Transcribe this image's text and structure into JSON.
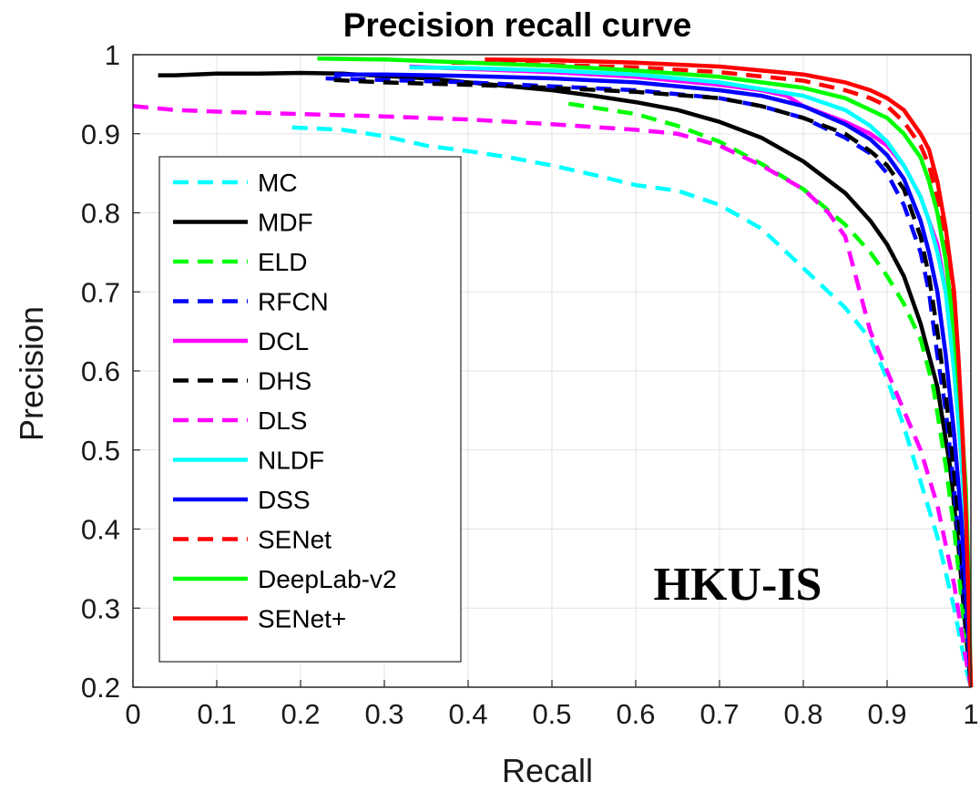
{
  "chart_data": {
    "type": "line",
    "title": "Precision recall curve",
    "xlabel": "Recall",
    "ylabel": "Precision",
    "xlim": [
      0,
      1
    ],
    "ylim": [
      0.2,
      1
    ],
    "grid": true,
    "x_ticks": [
      "0",
      "0.1",
      "0.2",
      "0.3",
      "0.4",
      "0.5",
      "0.6",
      "0.7",
      "0.8",
      "0.9",
      "1"
    ],
    "y_ticks": [
      "0.2",
      "0.3",
      "0.4",
      "0.5",
      "0.6",
      "0.7",
      "0.8",
      "0.9",
      "1"
    ],
    "legend_position": "left",
    "annotation": "HKU-IS",
    "series": [
      {
        "name": "MC",
        "color": "#00ffff",
        "dash": "dashed",
        "points": [
          [
            0.19,
            0.908
          ],
          [
            0.25,
            0.905
          ],
          [
            0.3,
            0.897
          ],
          [
            0.35,
            0.885
          ],
          [
            0.4,
            0.878
          ],
          [
            0.45,
            0.87
          ],
          [
            0.5,
            0.86
          ],
          [
            0.55,
            0.848
          ],
          [
            0.6,
            0.835
          ],
          [
            0.65,
            0.828
          ],
          [
            0.7,
            0.81
          ],
          [
            0.75,
            0.78
          ],
          [
            0.8,
            0.73
          ],
          [
            0.85,
            0.68
          ],
          [
            0.88,
            0.64
          ],
          [
            0.9,
            0.59
          ],
          [
            0.92,
            0.53
          ],
          [
            0.94,
            0.46
          ],
          [
            0.96,
            0.39
          ],
          [
            0.98,
            0.3
          ],
          [
            0.995,
            0.22
          ],
          [
            1.0,
            0.2
          ]
        ]
      },
      {
        "name": "MDF",
        "color": "#000000",
        "dash": "solid",
        "points": [
          [
            0.03,
            0.974
          ],
          [
            0.05,
            0.974
          ],
          [
            0.1,
            0.976
          ],
          [
            0.15,
            0.976
          ],
          [
            0.2,
            0.977
          ],
          [
            0.25,
            0.976
          ],
          [
            0.3,
            0.973
          ],
          [
            0.35,
            0.97
          ],
          [
            0.4,
            0.965
          ],
          [
            0.45,
            0.96
          ],
          [
            0.5,
            0.955
          ],
          [
            0.55,
            0.948
          ],
          [
            0.6,
            0.94
          ],
          [
            0.65,
            0.93
          ],
          [
            0.7,
            0.915
          ],
          [
            0.75,
            0.895
          ],
          [
            0.8,
            0.865
          ],
          [
            0.85,
            0.825
          ],
          [
            0.88,
            0.79
          ],
          [
            0.9,
            0.76
          ],
          [
            0.92,
            0.72
          ],
          [
            0.94,
            0.66
          ],
          [
            0.96,
            0.58
          ],
          [
            0.975,
            0.48
          ],
          [
            0.985,
            0.38
          ],
          [
            0.993,
            0.28
          ],
          [
            1.0,
            0.2
          ]
        ]
      },
      {
        "name": "ELD",
        "color": "#00ff00",
        "dash": "dashed",
        "points": [
          [
            0.52,
            0.938
          ],
          [
            0.6,
            0.925
          ],
          [
            0.65,
            0.91
          ],
          [
            0.7,
            0.89
          ],
          [
            0.75,
            0.862
          ],
          [
            0.8,
            0.83
          ],
          [
            0.85,
            0.785
          ],
          [
            0.88,
            0.75
          ],
          [
            0.9,
            0.72
          ],
          [
            0.92,
            0.685
          ],
          [
            0.94,
            0.64
          ],
          [
            0.955,
            0.58
          ],
          [
            0.97,
            0.48
          ],
          [
            0.98,
            0.4
          ],
          [
            0.99,
            0.3
          ],
          [
            0.997,
            0.22
          ],
          [
            1.0,
            0.2
          ]
        ]
      },
      {
        "name": "RFCN",
        "color": "#0000ff",
        "dash": "dashed",
        "points": [
          [
            0.23,
            0.97
          ],
          [
            0.3,
            0.968
          ],
          [
            0.4,
            0.965
          ],
          [
            0.5,
            0.96
          ],
          [
            0.6,
            0.955
          ],
          [
            0.7,
            0.945
          ],
          [
            0.75,
            0.935
          ],
          [
            0.8,
            0.92
          ],
          [
            0.85,
            0.895
          ],
          [
            0.88,
            0.875
          ],
          [
            0.9,
            0.85
          ],
          [
            0.92,
            0.81
          ],
          [
            0.94,
            0.75
          ],
          [
            0.95,
            0.7
          ],
          [
            0.96,
            0.62
          ],
          [
            0.97,
            0.55
          ],
          [
            0.98,
            0.45
          ],
          [
            0.99,
            0.34
          ],
          [
            0.996,
            0.26
          ],
          [
            1.0,
            0.2
          ]
        ]
      },
      {
        "name": "DCL",
        "color": "#ff00ff",
        "dash": "solid",
        "points": [
          [
            0.33,
            0.985
          ],
          [
            0.4,
            0.982
          ],
          [
            0.5,
            0.978
          ],
          [
            0.6,
            0.972
          ],
          [
            0.7,
            0.962
          ],
          [
            0.75,
            0.955
          ],
          [
            0.78,
            0.948
          ],
          [
            0.8,
            0.935
          ],
          [
            0.85,
            0.915
          ],
          [
            0.88,
            0.9
          ],
          [
            0.9,
            0.885
          ],
          [
            0.92,
            0.86
          ],
          [
            0.94,
            0.82
          ],
          [
            0.96,
            0.76
          ],
          [
            0.97,
            0.7
          ],
          [
            0.98,
            0.6
          ],
          [
            0.988,
            0.5
          ],
          [
            0.994,
            0.4
          ],
          [
            0.997,
            0.3
          ],
          [
            1.0,
            0.2
          ]
        ]
      },
      {
        "name": "DHS",
        "color": "#000000",
        "dash": "dashed",
        "points": [
          [
            0.24,
            0.968
          ],
          [
            0.3,
            0.965
          ],
          [
            0.4,
            0.962
          ],
          [
            0.5,
            0.958
          ],
          [
            0.6,
            0.953
          ],
          [
            0.7,
            0.945
          ],
          [
            0.75,
            0.935
          ],
          [
            0.8,
            0.92
          ],
          [
            0.85,
            0.9
          ],
          [
            0.88,
            0.878
          ],
          [
            0.9,
            0.86
          ],
          [
            0.92,
            0.83
          ],
          [
            0.94,
            0.77
          ],
          [
            0.95,
            0.72
          ],
          [
            0.96,
            0.65
          ],
          [
            0.97,
            0.57
          ],
          [
            0.98,
            0.47
          ],
          [
            0.99,
            0.36
          ],
          [
            0.996,
            0.26
          ],
          [
            1.0,
            0.2
          ]
        ]
      },
      {
        "name": "DLS",
        "color": "#ff00ff",
        "dash": "dashed",
        "points": [
          [
            0.0,
            0.935
          ],
          [
            0.05,
            0.93
          ],
          [
            0.1,
            0.928
          ],
          [
            0.2,
            0.925
          ],
          [
            0.3,
            0.922
          ],
          [
            0.4,
            0.918
          ],
          [
            0.5,
            0.912
          ],
          [
            0.6,
            0.905
          ],
          [
            0.65,
            0.9
          ],
          [
            0.7,
            0.885
          ],
          [
            0.75,
            0.86
          ],
          [
            0.8,
            0.83
          ],
          [
            0.83,
            0.8
          ],
          [
            0.85,
            0.77
          ],
          [
            0.86,
            0.73
          ],
          [
            0.87,
            0.69
          ],
          [
            0.88,
            0.65
          ],
          [
            0.9,
            0.6
          ],
          [
            0.92,
            0.55
          ],
          [
            0.94,
            0.5
          ],
          [
            0.96,
            0.43
          ],
          [
            0.98,
            0.33
          ],
          [
            0.995,
            0.23
          ],
          [
            1.0,
            0.2
          ]
        ]
      },
      {
        "name": "NLDF",
        "color": "#00ffff",
        "dash": "solid",
        "points": [
          [
            0.33,
            0.984
          ],
          [
            0.4,
            0.983
          ],
          [
            0.5,
            0.98
          ],
          [
            0.6,
            0.975
          ],
          [
            0.7,
            0.965
          ],
          [
            0.8,
            0.948
          ],
          [
            0.85,
            0.93
          ],
          [
            0.88,
            0.91
          ],
          [
            0.9,
            0.89
          ],
          [
            0.92,
            0.86
          ],
          [
            0.94,
            0.82
          ],
          [
            0.95,
            0.79
          ],
          [
            0.96,
            0.75
          ],
          [
            0.97,
            0.7
          ],
          [
            0.98,
            0.6
          ],
          [
            0.988,
            0.5
          ],
          [
            0.994,
            0.4
          ],
          [
            0.997,
            0.3
          ],
          [
            1.0,
            0.2
          ]
        ]
      },
      {
        "name": "DSS",
        "color": "#0000ff",
        "dash": "solid",
        "points": [
          [
            0.24,
            0.975
          ],
          [
            0.3,
            0.975
          ],
          [
            0.4,
            0.973
          ],
          [
            0.5,
            0.97
          ],
          [
            0.6,
            0.965
          ],
          [
            0.7,
            0.955
          ],
          [
            0.75,
            0.948
          ],
          [
            0.8,
            0.935
          ],
          [
            0.85,
            0.912
          ],
          [
            0.88,
            0.893
          ],
          [
            0.9,
            0.873
          ],
          [
            0.92,
            0.843
          ],
          [
            0.94,
            0.79
          ],
          [
            0.95,
            0.75
          ],
          [
            0.96,
            0.7
          ],
          [
            0.97,
            0.62
          ],
          [
            0.98,
            0.52
          ],
          [
            0.988,
            0.42
          ],
          [
            0.994,
            0.32
          ],
          [
            1.0,
            0.2
          ]
        ]
      },
      {
        "name": "SENet",
        "color": "#ff0000",
        "dash": "dashed",
        "points": [
          [
            0.38,
            0.99
          ],
          [
            0.45,
            0.989
          ],
          [
            0.5,
            0.987
          ],
          [
            0.6,
            0.984
          ],
          [
            0.7,
            0.978
          ],
          [
            0.8,
            0.967
          ],
          [
            0.85,
            0.955
          ],
          [
            0.88,
            0.945
          ],
          [
            0.9,
            0.935
          ],
          [
            0.92,
            0.915
          ],
          [
            0.94,
            0.885
          ],
          [
            0.95,
            0.86
          ],
          [
            0.96,
            0.82
          ],
          [
            0.97,
            0.76
          ],
          [
            0.98,
            0.68
          ],
          [
            0.985,
            0.6
          ],
          [
            0.99,
            0.52
          ],
          [
            0.994,
            0.42
          ],
          [
            0.997,
            0.32
          ],
          [
            1.0,
            0.2
          ]
        ]
      },
      {
        "name": "DeepLab-v2",
        "color": "#00ff00",
        "dash": "solid",
        "points": [
          [
            0.22,
            0.995
          ],
          [
            0.3,
            0.994
          ],
          [
            0.4,
            0.99
          ],
          [
            0.5,
            0.986
          ],
          [
            0.6,
            0.98
          ],
          [
            0.7,
            0.972
          ],
          [
            0.8,
            0.958
          ],
          [
            0.85,
            0.945
          ],
          [
            0.88,
            0.93
          ],
          [
            0.9,
            0.92
          ],
          [
            0.92,
            0.9
          ],
          [
            0.94,
            0.87
          ],
          [
            0.95,
            0.84
          ],
          [
            0.96,
            0.8
          ],
          [
            0.97,
            0.74
          ],
          [
            0.98,
            0.65
          ],
          [
            0.988,
            0.55
          ],
          [
            0.994,
            0.45
          ],
          [
            0.997,
            0.35
          ],
          [
            1.0,
            0.2
          ]
        ]
      },
      {
        "name": "SENet+",
        "color": "#ff0000",
        "dash": "solid",
        "points": [
          [
            0.42,
            0.994
          ],
          [
            0.5,
            0.993
          ],
          [
            0.6,
            0.99
          ],
          [
            0.7,
            0.985
          ],
          [
            0.8,
            0.975
          ],
          [
            0.85,
            0.965
          ],
          [
            0.88,
            0.955
          ],
          [
            0.9,
            0.945
          ],
          [
            0.92,
            0.93
          ],
          [
            0.94,
            0.9
          ],
          [
            0.95,
            0.88
          ],
          [
            0.96,
            0.84
          ],
          [
            0.97,
            0.78
          ],
          [
            0.98,
            0.7
          ],
          [
            0.985,
            0.62
          ],
          [
            0.99,
            0.52
          ],
          [
            0.994,
            0.42
          ],
          [
            0.997,
            0.32
          ],
          [
            1.0,
            0.2
          ]
        ]
      }
    ]
  }
}
